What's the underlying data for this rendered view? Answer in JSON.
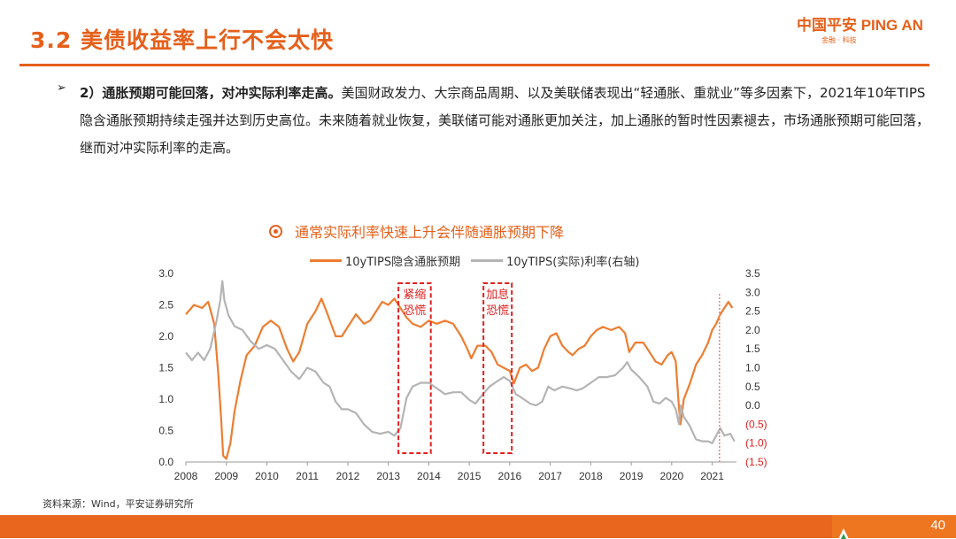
{
  "header": {
    "title": "3.2 美债收益率上行不会太快",
    "logo_text": "中国平安 PING AN",
    "logo_sub": "金融 · 科技"
  },
  "content": {
    "bullet_glyph": "➢",
    "heading": "2）通胀预期可能回落，对冲实际利率走高。",
    "body": "美国财政发力、大宗商品周期、以及美联储表现出“轻通胀、重就业”等多因素下，2021年10年TIPS隐含通胀预期持续走强并达到历史高位。未来随着就业恢复，美联储可能对通胀更加关注，加上通胀的暂时性因素褪去，市场通胀预期可能回落，继而对冲实际利率的走高。"
  },
  "chart_title": "通常实际利率快速上升会伴随通胀预期下降",
  "colors": {
    "accent": "#e5601b",
    "orange_series": "#ed7d31",
    "gray_series": "#b4b4b4",
    "annotation_red": "#e02020"
  },
  "chart_data": {
    "type": "line",
    "title": "",
    "x_ticks": [
      "2008",
      "2009",
      "2010",
      "2011",
      "2012",
      "2013",
      "2014",
      "2015",
      "2016",
      "2017",
      "2018",
      "2019",
      "2020",
      "2021"
    ],
    "xlim": [
      2008.0,
      2021.6
    ],
    "ylim_left": [
      0.0,
      3.0
    ],
    "ylim_right": [
      -1.5,
      3.5
    ],
    "y_ticks_left": [
      "0.0",
      "0.5",
      "1.0",
      "1.5",
      "2.0",
      "2.5",
      "3.0"
    ],
    "y_ticks_right": [
      "(1.5)",
      "(1.0)",
      "(0.5)",
      "0.0",
      "0.5",
      "1.0",
      "1.5",
      "2.0",
      "2.5",
      "3.0",
      "3.5"
    ],
    "legend_position": "top",
    "grid": false,
    "series": [
      {
        "name": "10yTIPS隐含通胀预期",
        "axis": "left",
        "color": "#ed7d31",
        "points": [
          [
            2008.0,
            2.35
          ],
          [
            2008.2,
            2.5
          ],
          [
            2008.4,
            2.45
          ],
          [
            2008.55,
            2.55
          ],
          [
            2008.7,
            2.2
          ],
          [
            2008.8,
            1.4
          ],
          [
            2008.88,
            0.6
          ],
          [
            2008.92,
            0.1
          ],
          [
            2009.0,
            0.05
          ],
          [
            2009.1,
            0.3
          ],
          [
            2009.2,
            0.8
          ],
          [
            2009.35,
            1.3
          ],
          [
            2009.5,
            1.7
          ],
          [
            2009.7,
            1.85
          ],
          [
            2009.9,
            2.15
          ],
          [
            2010.1,
            2.25
          ],
          [
            2010.3,
            2.15
          ],
          [
            2010.5,
            1.8
          ],
          [
            2010.65,
            1.6
          ],
          [
            2010.8,
            1.75
          ],
          [
            2011.0,
            2.2
          ],
          [
            2011.2,
            2.4
          ],
          [
            2011.35,
            2.6
          ],
          [
            2011.5,
            2.35
          ],
          [
            2011.7,
            2.0
          ],
          [
            2011.85,
            2.0
          ],
          [
            2012.0,
            2.15
          ],
          [
            2012.2,
            2.35
          ],
          [
            2012.4,
            2.2
          ],
          [
            2012.55,
            2.25
          ],
          [
            2012.7,
            2.4
          ],
          [
            2012.85,
            2.55
          ],
          [
            2013.0,
            2.5
          ],
          [
            2013.15,
            2.6
          ],
          [
            2013.3,
            2.45
          ],
          [
            2013.45,
            2.3
          ],
          [
            2013.6,
            2.2
          ],
          [
            2013.8,
            2.15
          ],
          [
            2014.0,
            2.25
          ],
          [
            2014.2,
            2.2
          ],
          [
            2014.4,
            2.25
          ],
          [
            2014.6,
            2.2
          ],
          [
            2014.8,
            2.0
          ],
          [
            2014.95,
            1.8
          ],
          [
            2015.05,
            1.65
          ],
          [
            2015.2,
            1.85
          ],
          [
            2015.4,
            1.85
          ],
          [
            2015.55,
            1.75
          ],
          [
            2015.7,
            1.55
          ],
          [
            2015.85,
            1.5
          ],
          [
            2016.0,
            1.45
          ],
          [
            2016.1,
            1.25
          ],
          [
            2016.25,
            1.5
          ],
          [
            2016.4,
            1.55
          ],
          [
            2016.55,
            1.45
          ],
          [
            2016.7,
            1.5
          ],
          [
            2016.85,
            1.8
          ],
          [
            2017.0,
            2.0
          ],
          [
            2017.15,
            2.05
          ],
          [
            2017.3,
            1.85
          ],
          [
            2017.45,
            1.75
          ],
          [
            2017.55,
            1.7
          ],
          [
            2017.7,
            1.8
          ],
          [
            2017.85,
            1.85
          ],
          [
            2018.0,
            2.0
          ],
          [
            2018.15,
            2.1
          ],
          [
            2018.3,
            2.15
          ],
          [
            2018.5,
            2.1
          ],
          [
            2018.7,
            2.15
          ],
          [
            2018.85,
            2.05
          ],
          [
            2018.95,
            1.75
          ],
          [
            2019.1,
            1.9
          ],
          [
            2019.3,
            1.9
          ],
          [
            2019.5,
            1.7
          ],
          [
            2019.6,
            1.6
          ],
          [
            2019.75,
            1.55
          ],
          [
            2019.9,
            1.7
          ],
          [
            2020.0,
            1.75
          ],
          [
            2020.1,
            1.6
          ],
          [
            2020.18,
            0.85
          ],
          [
            2020.22,
            0.6
          ],
          [
            2020.3,
            1.0
          ],
          [
            2020.45,
            1.25
          ],
          [
            2020.6,
            1.55
          ],
          [
            2020.75,
            1.7
          ],
          [
            2020.9,
            1.9
          ],
          [
            2021.0,
            2.1
          ],
          [
            2021.1,
            2.2
          ],
          [
            2021.2,
            2.35
          ],
          [
            2021.3,
            2.45
          ],
          [
            2021.4,
            2.55
          ],
          [
            2021.5,
            2.45
          ]
        ]
      },
      {
        "name": "10yTIPS(实际)利率(右轴)",
        "axis": "right",
        "color": "#b4b4b4",
        "points": [
          [
            2008.0,
            1.4
          ],
          [
            2008.15,
            1.2
          ],
          [
            2008.3,
            1.4
          ],
          [
            2008.45,
            1.2
          ],
          [
            2008.6,
            1.5
          ],
          [
            2008.75,
            2.2
          ],
          [
            2008.85,
            2.8
          ],
          [
            2008.9,
            3.3
          ],
          [
            2008.95,
            2.8
          ],
          [
            2009.05,
            2.4
          ],
          [
            2009.2,
            2.1
          ],
          [
            2009.4,
            2.0
          ],
          [
            2009.6,
            1.7
          ],
          [
            2009.8,
            1.5
          ],
          [
            2010.0,
            1.6
          ],
          [
            2010.2,
            1.5
          ],
          [
            2010.4,
            1.2
          ],
          [
            2010.6,
            0.9
          ],
          [
            2010.8,
            0.7
          ],
          [
            2011.0,
            1.0
          ],
          [
            2011.2,
            0.9
          ],
          [
            2011.4,
            0.6
          ],
          [
            2011.55,
            0.5
          ],
          [
            2011.7,
            0.1
          ],
          [
            2011.85,
            -0.1
          ],
          [
            2012.0,
            -0.1
          ],
          [
            2012.2,
            -0.2
          ],
          [
            2012.4,
            -0.5
          ],
          [
            2012.6,
            -0.7
          ],
          [
            2012.8,
            -0.75
          ],
          [
            2013.0,
            -0.7
          ],
          [
            2013.15,
            -0.8
          ],
          [
            2013.3,
            -0.6
          ],
          [
            2013.45,
            0.2
          ],
          [
            2013.6,
            0.5
          ],
          [
            2013.8,
            0.6
          ],
          [
            2014.0,
            0.6
          ],
          [
            2014.2,
            0.45
          ],
          [
            2014.4,
            0.3
          ],
          [
            2014.6,
            0.35
          ],
          [
            2014.8,
            0.35
          ],
          [
            2015.0,
            0.15
          ],
          [
            2015.15,
            0.05
          ],
          [
            2015.3,
            0.25
          ],
          [
            2015.5,
            0.5
          ],
          [
            2015.7,
            0.65
          ],
          [
            2015.85,
            0.75
          ],
          [
            2016.0,
            0.65
          ],
          [
            2016.15,
            0.3
          ],
          [
            2016.3,
            0.2
          ],
          [
            2016.5,
            0.05
          ],
          [
            2016.65,
            0.0
          ],
          [
            2016.8,
            0.1
          ],
          [
            2016.95,
            0.5
          ],
          [
            2017.1,
            0.4
          ],
          [
            2017.3,
            0.5
          ],
          [
            2017.5,
            0.45
          ],
          [
            2017.65,
            0.4
          ],
          [
            2017.8,
            0.45
          ],
          [
            2018.0,
            0.6
          ],
          [
            2018.2,
            0.75
          ],
          [
            2018.4,
            0.75
          ],
          [
            2018.6,
            0.8
          ],
          [
            2018.8,
            1.0
          ],
          [
            2018.9,
            1.15
          ],
          [
            2019.0,
            0.95
          ],
          [
            2019.2,
            0.75
          ],
          [
            2019.4,
            0.5
          ],
          [
            2019.55,
            0.1
          ],
          [
            2019.7,
            0.05
          ],
          [
            2019.85,
            0.2
          ],
          [
            2020.0,
            0.1
          ],
          [
            2020.1,
            -0.1
          ],
          [
            2020.18,
            -0.5
          ],
          [
            2020.22,
            0.0
          ],
          [
            2020.3,
            -0.3
          ],
          [
            2020.45,
            -0.55
          ],
          [
            2020.6,
            -0.9
          ],
          [
            2020.75,
            -0.95
          ],
          [
            2020.9,
            -0.95
          ],
          [
            2021.0,
            -1.0
          ],
          [
            2021.1,
            -0.8
          ],
          [
            2021.2,
            -0.6
          ],
          [
            2021.3,
            -0.8
          ],
          [
            2021.45,
            -0.75
          ],
          [
            2021.55,
            -0.95
          ]
        ]
      }
    ],
    "annotations": [
      {
        "text": "紧缩恐慌",
        "x_start": 2013.25,
        "x_end": 2014.05
      },
      {
        "text": "加息恐慌",
        "x_start": 2015.35,
        "x_end": 2016.05
      }
    ],
    "vertical_marker_x": 2021.18
  },
  "source": "资料来源：Wind，平安证券研究所",
  "page_number": "40"
}
